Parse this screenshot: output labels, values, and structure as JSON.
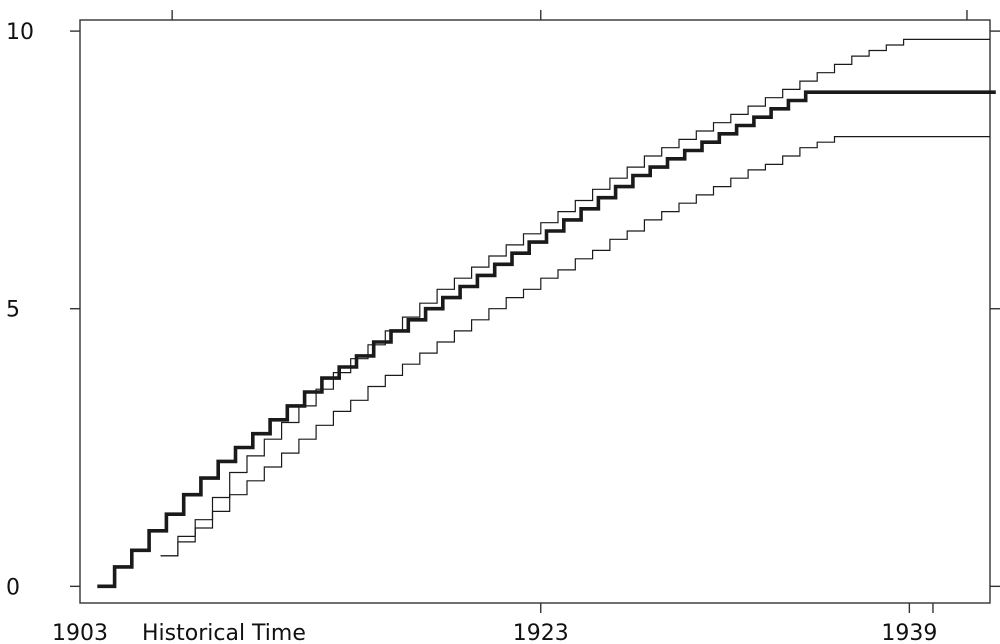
{
  "chart_data": {
    "type": "line",
    "step": true,
    "xlabel": "Historical Time",
    "ylabel": "",
    "title": "",
    "xlim": [
      1903,
      1942.5
    ],
    "ylim": [
      -0.3,
      10.2
    ],
    "x_tick_labels": [
      {
        "value": 1903,
        "label": "1903"
      },
      {
        "value": 1923,
        "label": "1923"
      },
      {
        "value": 1939,
        "label": "1939"
      }
    ],
    "x_top_ticks": [
      1907,
      1923,
      1941.5
    ],
    "y_tick_labels": [
      {
        "value": 0,
        "label": "0"
      },
      {
        "value": 5,
        "label": "5"
      },
      {
        "value": 10,
        "label": "10"
      }
    ],
    "grid": false,
    "colors": {
      "line": "#1a1a1a",
      "frame": "#333333"
    },
    "series": [
      {
        "width": "thin",
        "x": [
          1906.5,
          1907.25,
          1908,
          1908.75,
          1909.5,
          1910.25,
          1911,
          1911.75,
          1912.5,
          1913.25,
          1914,
          1914.75,
          1915.5,
          1916.25,
          1917,
          1917.75,
          1918.5,
          1919.25,
          1920,
          1920.75,
          1921.5,
          1922.25,
          1923,
          1923.75,
          1924.5,
          1925.25,
          1926,
          1926.75,
          1927.5,
          1928.25,
          1929,
          1929.75,
          1930.5,
          1931.25,
          1932,
          1932.75,
          1933.5,
          1934.25,
          1935,
          1935.75,
          1936.5,
          1937.25,
          1938,
          1938.75,
          1939.5,
          1940.25,
          1941,
          1941.75
        ],
        "values": [
          0.55,
          0.9,
          1.2,
          1.6,
          2.05,
          2.35,
          2.65,
          2.95,
          3.25,
          3.55,
          3.85,
          4.1,
          4.35,
          4.6,
          4.85,
          5.1,
          5.35,
          5.55,
          5.75,
          5.95,
          6.15,
          6.35,
          6.55,
          6.75,
          6.95,
          7.15,
          7.35,
          7.55,
          7.75,
          7.9,
          8.05,
          8.2,
          8.35,
          8.5,
          8.65,
          8.8,
          8.95,
          9.1,
          9.25,
          9.4,
          9.55,
          9.65,
          9.75,
          9.85,
          9.85,
          9.85,
          9.85,
          9.85
        ]
      },
      {
        "width": "thick",
        "x": [
          1903.75,
          1904.5,
          1905.25,
          1906,
          1906.75,
          1907.5,
          1908.25,
          1909,
          1909.75,
          1910.5,
          1911.25,
          1912,
          1912.75,
          1913.5,
          1914.25,
          1915,
          1915.75,
          1916.5,
          1917.25,
          1918,
          1918.75,
          1919.5,
          1920.25,
          1921,
          1921.75,
          1922.5,
          1923.25,
          1924,
          1924.75,
          1925.5,
          1926.25,
          1927,
          1927.75,
          1928.5,
          1929.25,
          1930,
          1930.75,
          1931.5,
          1932.25,
          1933,
          1933.75,
          1934.5,
          1935.25,
          1936,
          1936.75,
          1937.5,
          1938.25,
          1939,
          1939.75,
          1940.5,
          1941.25,
          1942
        ],
        "values": [
          0.0,
          0.35,
          0.65,
          1.0,
          1.3,
          1.65,
          1.95,
          2.25,
          2.5,
          2.75,
          3.0,
          3.25,
          3.5,
          3.75,
          3.95,
          4.15,
          4.4,
          4.6,
          4.8,
          5.0,
          5.2,
          5.4,
          5.6,
          5.8,
          6.0,
          6.2,
          6.4,
          6.6,
          6.8,
          7.0,
          7.2,
          7.4,
          7.55,
          7.7,
          7.85,
          8.0,
          8.15,
          8.3,
          8.45,
          8.6,
          8.75,
          8.9,
          8.9,
          8.9,
          8.9,
          8.9,
          8.9,
          8.9,
          8.9,
          8.9,
          8.9,
          8.9
        ]
      },
      {
        "width": "thin",
        "x": [
          1906.5,
          1907.25,
          1908,
          1908.75,
          1909.5,
          1910.25,
          1911,
          1911.75,
          1912.5,
          1913.25,
          1914,
          1914.75,
          1915.5,
          1916.25,
          1917,
          1917.75,
          1918.5,
          1919.25,
          1920,
          1920.75,
          1921.5,
          1922.25,
          1923,
          1923.75,
          1924.5,
          1925.25,
          1926,
          1926.75,
          1927.5,
          1928.25,
          1929,
          1929.75,
          1930.5,
          1931.25,
          1932,
          1932.75,
          1933.5,
          1934.25,
          1935,
          1935.75,
          1936.5,
          1937.25,
          1938,
          1938.75,
          1939.5,
          1940.25,
          1941,
          1941.75
        ],
        "values": [
          0.55,
          0.8,
          1.05,
          1.35,
          1.65,
          1.9,
          2.15,
          2.4,
          2.65,
          2.9,
          3.15,
          3.35,
          3.6,
          3.8,
          4.0,
          4.2,
          4.4,
          4.6,
          4.8,
          5.0,
          5.2,
          5.35,
          5.55,
          5.7,
          5.9,
          6.05,
          6.25,
          6.4,
          6.6,
          6.75,
          6.9,
          7.05,
          7.2,
          7.35,
          7.5,
          7.6,
          7.75,
          7.9,
          8.0,
          8.1,
          8.1,
          8.1,
          8.1,
          8.1,
          8.1,
          8.1,
          8.1,
          8.1
        ]
      }
    ]
  }
}
